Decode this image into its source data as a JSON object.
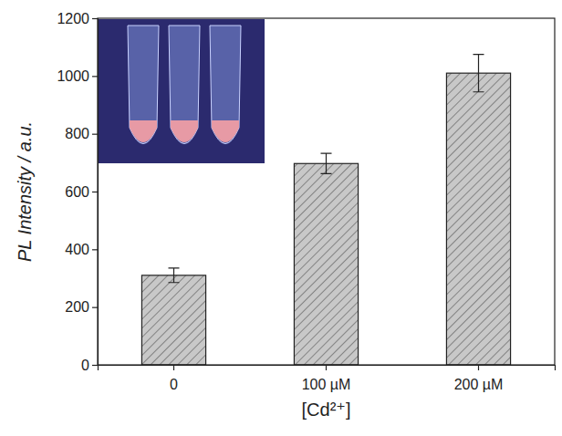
{
  "chart_data": {
    "type": "bar",
    "x_label": "[Cd²⁺]",
    "y_label": "PL Intensity / a.u.",
    "categories": [
      "0",
      "100 µM",
      "200 µM"
    ],
    "values": [
      310,
      697,
      1010
    ],
    "errors": [
      25,
      35,
      65
    ],
    "color": "#c8c8c8",
    "ylim": [
      0,
      1200
    ],
    "yticks": [
      0,
      200,
      400,
      600,
      800,
      1000,
      1200
    ],
    "grid": false
  }
}
